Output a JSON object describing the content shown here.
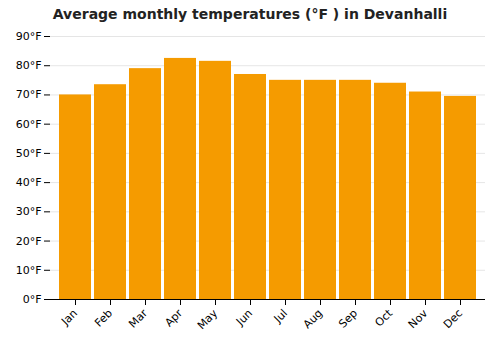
{
  "chart_data": {
    "type": "bar",
    "title": "Average monthly temperatures (°F ) in Devanhalli",
    "categories": [
      "Jan",
      "Feb",
      "Mar",
      "Apr",
      "May",
      "Jun",
      "Jul",
      "Aug",
      "Sep",
      "Oct",
      "Nov",
      "Dec"
    ],
    "values": [
      70,
      73.5,
      79,
      82.5,
      81.5,
      77,
      75,
      75,
      75,
      74,
      71,
      69.5
    ],
    "color": "#F59B00",
    "ylim": [
      0,
      90
    ],
    "yticks": [
      {
        "value": 0,
        "label": "0°F"
      },
      {
        "value": 10,
        "label": "10°F"
      },
      {
        "value": 20,
        "label": "20°F"
      },
      {
        "value": 30,
        "label": "30°F"
      },
      {
        "value": 40,
        "label": "40°F"
      },
      {
        "value": 50,
        "label": "50°F"
      },
      {
        "value": 60,
        "label": "60°F"
      },
      {
        "value": 70,
        "label": "70°F"
      },
      {
        "value": 80,
        "label": "80°F"
      },
      {
        "value": 90,
        "label": "90°F"
      }
    ],
    "grid": true
  }
}
